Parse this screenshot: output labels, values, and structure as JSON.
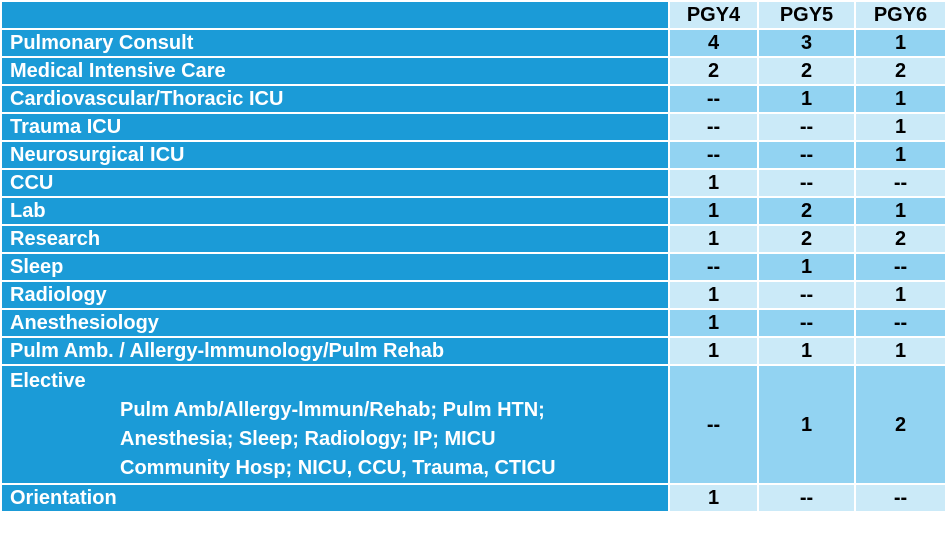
{
  "table": {
    "columns": [
      "PGY4",
      "PGY5",
      "PGY6"
    ],
    "rows": [
      {
        "label": "Pulmonary Consult",
        "values": [
          4,
          3,
          1
        ]
      },
      {
        "label": "Medical Intensive Care",
        "values": [
          2,
          2,
          2
        ]
      },
      {
        "label": "Cardiovascular/Thoracic ICU",
        "values": [
          "--",
          1,
          1
        ]
      },
      {
        "label": "Trauma ICU",
        "values": [
          "--",
          "--",
          1
        ]
      },
      {
        "label": "Neurosurgical ICU",
        "values": [
          "--",
          "--",
          1
        ]
      },
      {
        "label": "CCU",
        "values": [
          1,
          "--",
          "--"
        ]
      },
      {
        "label": "Lab",
        "values": [
          1,
          2,
          1
        ]
      },
      {
        "label": "Research",
        "values": [
          1,
          2,
          2
        ]
      },
      {
        "label": "Sleep",
        "values": [
          "--",
          1,
          "--"
        ]
      },
      {
        "label": "Radiology",
        "values": [
          1,
          "--",
          1
        ]
      },
      {
        "label": "Anesthesiology",
        "values": [
          1,
          "--",
          "--"
        ]
      },
      {
        "label": "Pulm Amb. / Allergy-lmmunology/Pulm Rehab",
        "values": [
          1,
          1,
          1
        ]
      },
      {
        "label": "Elective",
        "details": [
          "Pulm Amb/Allergy-lmmun/Rehab; Pulm HTN;",
          "Anesthesia; Sleep; Radiology; IP; MICU",
          "Community Hosp; NICU, CCU, Trauma, CTICU"
        ],
        "values": [
          "--",
          1,
          2
        ]
      },
      {
        "label": "Orientation",
        "values": [
          1,
          "--",
          "--"
        ]
      }
    ]
  }
}
